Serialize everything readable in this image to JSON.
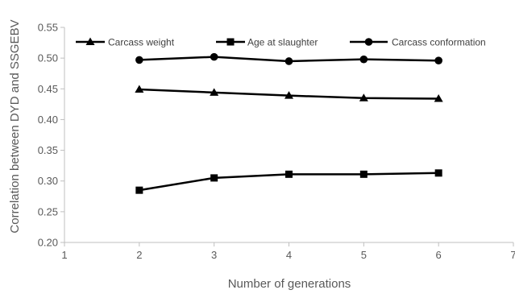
{
  "chart_data": {
    "type": "line",
    "xlabel": "Number of generations",
    "ylabel": "Correlation between DYD and SSGEBV",
    "xlim": [
      1,
      7
    ],
    "ylim": [
      0.2,
      0.55
    ],
    "x_ticks": [
      "1",
      "2",
      "3",
      "4",
      "5",
      "6",
      "7"
    ],
    "y_ticks": [
      "0.20",
      "0.25",
      "0.30",
      "0.35",
      "0.40",
      "0.45",
      "0.50",
      "0.55"
    ],
    "grid": false,
    "legend_position": "top",
    "x": [
      2,
      3,
      4,
      5,
      6
    ],
    "series": [
      {
        "name": "Carcass weight",
        "marker": "triangle",
        "values": [
          0.449,
          0.444,
          0.439,
          0.435,
          0.434
        ]
      },
      {
        "name": "Age at slaughter",
        "marker": "square",
        "values": [
          0.285,
          0.305,
          0.311,
          0.311,
          0.313
        ]
      },
      {
        "name": "Carcass conformation",
        "marker": "circle",
        "values": [
          0.497,
          0.502,
          0.495,
          0.498,
          0.496
        ]
      }
    ],
    "colors": {
      "line": "#000000",
      "axis": "#bfbfbf",
      "text": "#595959"
    }
  }
}
